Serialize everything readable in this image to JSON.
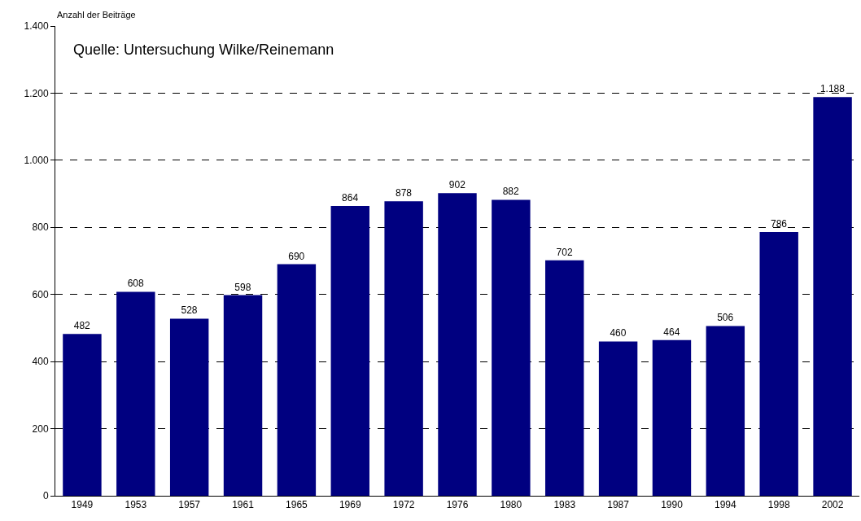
{
  "chart_data": {
    "type": "bar",
    "ylabel": "Anzahl der Beiträge",
    "annotations": [
      "Quelle: Untersuchung Wilke/Reinemann"
    ],
    "categories": [
      "1949",
      "1953",
      "1957",
      "1961",
      "1965",
      "1969",
      "1972",
      "1976",
      "1980",
      "1983",
      "1987",
      "1990",
      "1994",
      "1998",
      "2002"
    ],
    "values": [
      482,
      608,
      528,
      598,
      690,
      864,
      878,
      902,
      882,
      702,
      460,
      464,
      506,
      786,
      1188
    ],
    "value_labels": [
      "482",
      "608",
      "528",
      "598",
      "690",
      "864",
      "878",
      "902",
      "882",
      "702",
      "460",
      "464",
      "506",
      "786",
      "1.188"
    ],
    "color": "#000080",
    "ylim": [
      0,
      1400
    ],
    "yticks": [
      0,
      200,
      400,
      600,
      800,
      {
        "value": 1000,
        "label": "1.000"
      },
      {
        "value": 1200,
        "label": "1.200"
      },
      {
        "value": 1400,
        "label": "1.400"
      }
    ],
    "grid": "y"
  }
}
